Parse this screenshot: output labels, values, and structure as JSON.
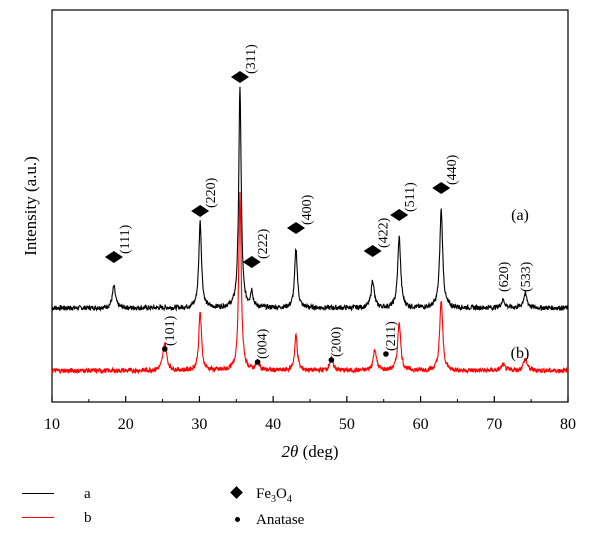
{
  "chart_data": {
    "type": "line",
    "xlabel": "2θ (deg)",
    "ylabel": "Intensity (a.u.)",
    "xlim": [
      10,
      80
    ],
    "xticks": [
      10,
      20,
      30,
      40,
      50,
      60,
      70,
      80
    ],
    "grid": false,
    "legend_position": "below",
    "series": [
      {
        "name": "a",
        "curve_label": "(a)",
        "color": "#000000",
        "baseline": 0.24,
        "noise": 0.006,
        "peaks": [
          {
            "x": 18.4,
            "h": 0.055,
            "w": 0.25
          },
          {
            "x": 30.1,
            "h": 0.22,
            "w": 0.22
          },
          {
            "x": 35.5,
            "h": 0.56,
            "w": 0.2
          },
          {
            "x": 37.1,
            "h": 0.04,
            "w": 0.2
          },
          {
            "x": 43.1,
            "h": 0.15,
            "w": 0.22
          },
          {
            "x": 53.5,
            "h": 0.07,
            "w": 0.25
          },
          {
            "x": 57.1,
            "h": 0.18,
            "w": 0.24
          },
          {
            "x": 62.8,
            "h": 0.25,
            "w": 0.24
          },
          {
            "x": 71.2,
            "h": 0.02,
            "w": 0.3
          },
          {
            "x": 74.2,
            "h": 0.035,
            "w": 0.3
          }
        ]
      },
      {
        "name": "b",
        "curve_label": "(b)",
        "color": "#ff0000",
        "baseline": 0.08,
        "noise": 0.006,
        "peaks": [
          {
            "x": 25.3,
            "h": 0.07,
            "w": 0.3
          },
          {
            "x": 30.1,
            "h": 0.15,
            "w": 0.22
          },
          {
            "x": 35.5,
            "h": 0.45,
            "w": 0.2
          },
          {
            "x": 37.9,
            "h": 0.02,
            "w": 0.3
          },
          {
            "x": 43.1,
            "h": 0.09,
            "w": 0.22
          },
          {
            "x": 47.9,
            "h": 0.03,
            "w": 0.3
          },
          {
            "x": 53.8,
            "h": 0.055,
            "w": 0.25
          },
          {
            "x": 57.1,
            "h": 0.125,
            "w": 0.24
          },
          {
            "x": 62.8,
            "h": 0.18,
            "w": 0.24
          },
          {
            "x": 71.2,
            "h": 0.015,
            "w": 0.3
          },
          {
            "x": 74.2,
            "h": 0.03,
            "w": 0.3
          }
        ]
      }
    ],
    "annotations": [
      {
        "marker": "diamond",
        "label": "(111)",
        "x": 18.4
      },
      {
        "marker": "diamond",
        "label": "(220)",
        "x": 30.1
      },
      {
        "marker": "diamond",
        "label": "(311)",
        "x": 35.5
      },
      {
        "marker": "diamond",
        "label": "(222)",
        "x": 37.1
      },
      {
        "marker": "diamond",
        "label": "(400)",
        "x": 43.1
      },
      {
        "marker": "diamond",
        "label": "(422)",
        "x": 53.5
      },
      {
        "marker": "diamond",
        "label": "(511)",
        "x": 57.1
      },
      {
        "marker": "diamond",
        "label": "(440)",
        "x": 62.8
      },
      {
        "marker": "none",
        "label": "(620)",
        "x": 71.2
      },
      {
        "marker": "none",
        "label": "(533)",
        "x": 74.2
      },
      {
        "marker": "dot",
        "label": "(101)",
        "x": 25.3
      },
      {
        "marker": "dot",
        "label": "(004)",
        "x": 37.9
      },
      {
        "marker": "dot",
        "label": "(200)",
        "x": 47.9
      },
      {
        "marker": "dot",
        "label": "(211)",
        "x": 55.3
      }
    ]
  },
  "legend": {
    "series": [
      {
        "label": "a",
        "color": "#000000"
      },
      {
        "label": "b",
        "color": "#ff0000"
      }
    ],
    "markers": [
      {
        "symbol": "diamond",
        "label_main": "Fe",
        "sub1": "3",
        "mid": "O",
        "sub2": "4"
      },
      {
        "symbol": "dot",
        "label": "Anatase"
      }
    ]
  }
}
